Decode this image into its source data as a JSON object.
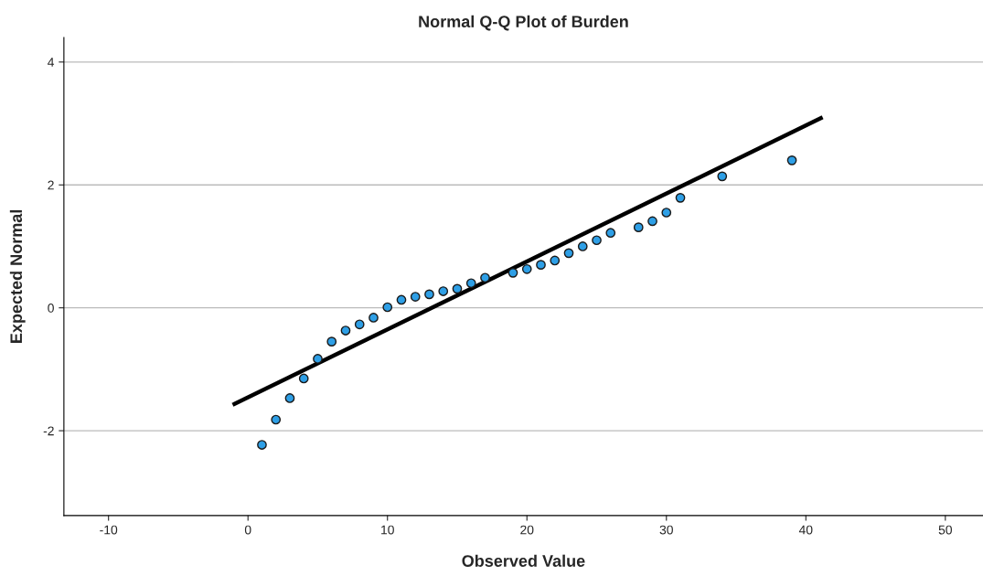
{
  "chart_data": {
    "type": "scatter",
    "title": "Normal Q-Q Plot of Burden",
    "xlabel": "Observed Value",
    "ylabel": "Expected Normal",
    "xlim": [
      -13.2,
      52.7
    ],
    "ylim": [
      -3.38,
      4.4
    ],
    "xticks": [
      -10,
      0,
      10,
      20,
      30,
      40,
      50
    ],
    "yticks": [
      -2,
      0,
      2,
      4
    ],
    "grid": "y",
    "series": [
      {
        "marker": "circle",
        "color": "#2e9fe6",
        "x": [
          1,
          2,
          3,
          4,
          5,
          6,
          7,
          8,
          9,
          10,
          11,
          12,
          13,
          14,
          15,
          16,
          17,
          19,
          20,
          21,
          22,
          23,
          24,
          25,
          26,
          28,
          29,
          30,
          31,
          34,
          39
        ],
        "values": [
          -2.23,
          -1.82,
          -1.47,
          -1.15,
          -0.83,
          -0.55,
          -0.37,
          -0.27,
          -0.16,
          0.01,
          0.13,
          0.18,
          0.22,
          0.27,
          0.31,
          0.4,
          0.49,
          0.57,
          0.63,
          0.7,
          0.77,
          0.89,
          1.0,
          1.1,
          1.22,
          1.31,
          1.41,
          1.55,
          1.79,
          2.14,
          2.4
        ]
      },
      {
        "type": "line",
        "color": "#000000",
        "x": [
          -1.1,
          41.2
        ],
        "values": [
          -1.58,
          3.1
        ]
      }
    ]
  }
}
